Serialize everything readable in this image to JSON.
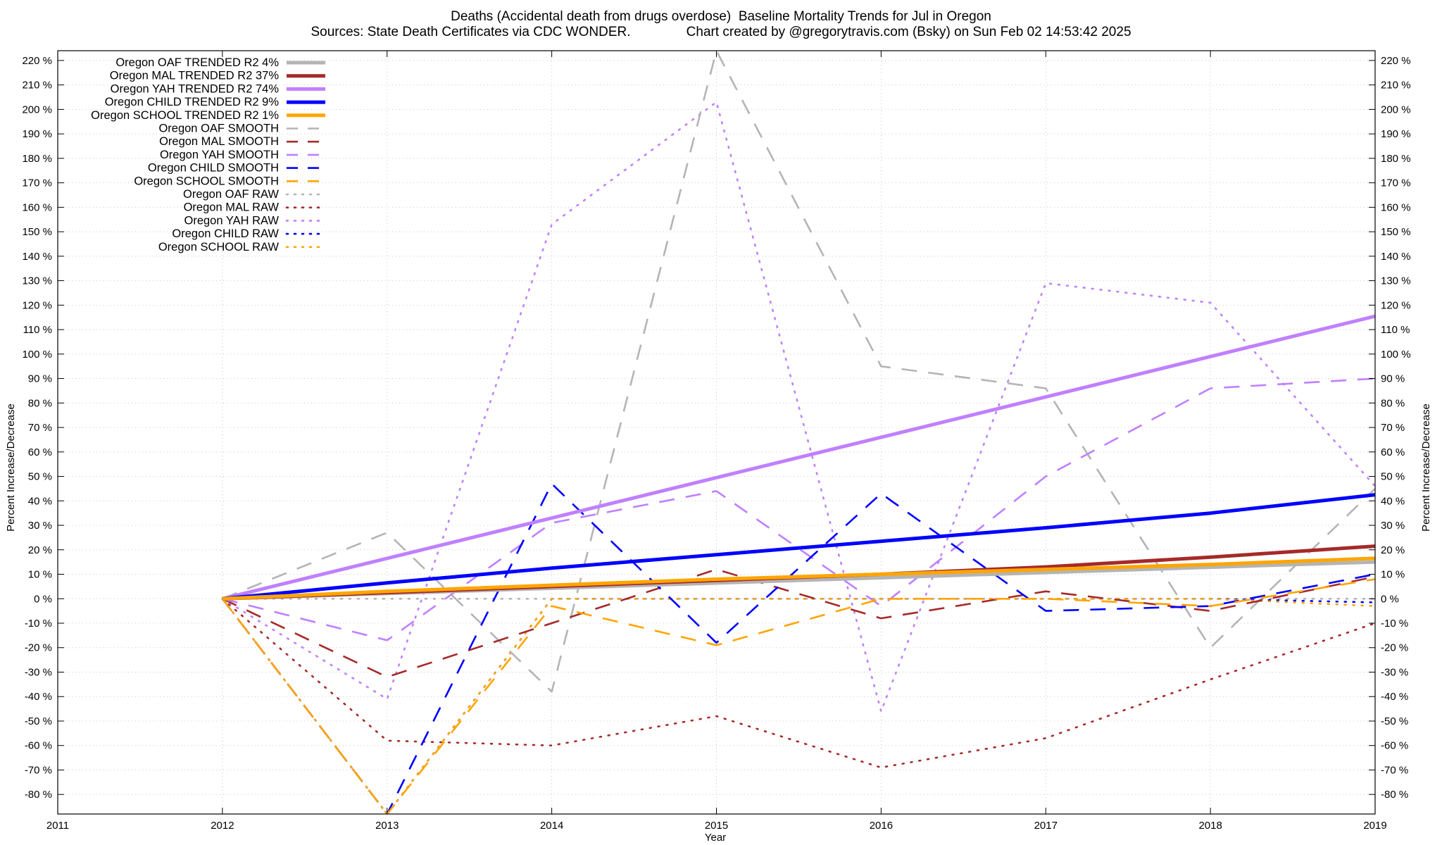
{
  "chart_data": {
    "type": "line",
    "title": "Deaths (Accidental death from drugs overdose)  Baseline Mortality Trends for Jul in Oregon",
    "subtitle": "Sources: State Death Certificates via CDC WONDER.               Chart created by @gregorytravis.com (Bsky) on Sun Feb 02 14:53:42 2025",
    "xlabel": "Year",
    "ylabel": "Percent Increase/Decrease",
    "xlim": [
      2011,
      2019
    ],
    "ylim": [
      -88,
      224
    ],
    "xticks": [
      2011,
      2012,
      2013,
      2014,
      2015,
      2016,
      2017,
      2018,
      2019
    ],
    "yticks": [
      -80,
      -70,
      -60,
      -50,
      -40,
      -30,
      -20,
      -10,
      0,
      10,
      20,
      30,
      40,
      50,
      60,
      70,
      80,
      90,
      100,
      110,
      120,
      130,
      140,
      150,
      160,
      170,
      180,
      190,
      200,
      210,
      220
    ],
    "ytick_suffix": " %",
    "grid": true,
    "legend_position": "top-left",
    "series": [
      {
        "name": "Oregon OAF TRENDED R2  4%",
        "style": "solid",
        "color": "#b4b4b4",
        "x": [
          2012,
          2019
        ],
        "y": [
          0,
          15
        ]
      },
      {
        "name": "Oregon MAL TRENDED R2  37%",
        "style": "solid",
        "color": "#a52a2a",
        "x": [
          2012,
          2013,
          2014,
          2015,
          2016,
          2017,
          2018,
          2019
        ],
        "y": [
          0,
          2.5,
          5,
          7.5,
          10,
          13,
          17,
          21.5
        ]
      },
      {
        "name": "Oregon YAH TRENDED R2  74%",
        "style": "solid",
        "color": "#c080ff",
        "x": [
          2012,
          2019
        ],
        "y": [
          0,
          115.5
        ]
      },
      {
        "name": "Oregon CHILD TRENDED R2  9%",
        "style": "solid",
        "color": "#0000ff",
        "x": [
          2012,
          2013,
          2014,
          2015,
          2016,
          2017,
          2018,
          2019
        ],
        "y": [
          0,
          6.5,
          12.5,
          18,
          23.5,
          29,
          35,
          42.5
        ]
      },
      {
        "name": "Oregon SCHOOL TRENDED R2  1%",
        "style": "solid",
        "color": "#ffa500",
        "x": [
          2012,
          2013,
          2014,
          2015,
          2016,
          2017,
          2018,
          2019
        ],
        "y": [
          0,
          3,
          5.5,
          8,
          10,
          12,
          14,
          16.5
        ]
      },
      {
        "name": "Oregon OAF SMOOTH",
        "style": "dashed",
        "color": "#b4b4b4",
        "x": [
          2012,
          2013,
          2014,
          2015,
          2016,
          2017,
          2018,
          2019
        ],
        "y": [
          0,
          27,
          -38,
          224,
          95,
          86,
          -20,
          45
        ]
      },
      {
        "name": "Oregon MAL SMOOTH",
        "style": "dashed",
        "color": "#a52a2a",
        "x": [
          2012,
          2013,
          2014,
          2015,
          2016,
          2017,
          2018,
          2019
        ],
        "y": [
          0,
          -32,
          -10,
          12,
          -8,
          3,
          -5,
          9
        ]
      },
      {
        "name": "Oregon YAH SMOOTH",
        "style": "dashed",
        "color": "#c080ff",
        "x": [
          2012,
          2013,
          2014,
          2015,
          2016,
          2017,
          2018,
          2019
        ],
        "y": [
          0,
          -17,
          31,
          44,
          -3,
          50,
          86,
          90
        ]
      },
      {
        "name": "Oregon CHILD SMOOTH",
        "style": "dashed",
        "color": "#0000ff",
        "x": [
          2012,
          2013,
          2014,
          2015,
          2016,
          2017,
          2018,
          2019
        ],
        "y": [
          0,
          -88,
          47,
          -18,
          43,
          -5,
          -3,
          10
        ]
      },
      {
        "name": "Oregon SCHOOL SMOOTH",
        "style": "dashed",
        "color": "#ffa500",
        "x": [
          2012,
          2013,
          2014,
          2015,
          2016,
          2017,
          2018,
          2019
        ],
        "y": [
          0,
          -88,
          -3,
          -19,
          0,
          0,
          -3,
          8
        ]
      },
      {
        "name": "Oregon OAF RAW",
        "style": "dotted",
        "color": "#b4b4b4",
        "x": [
          2012,
          2013,
          2014,
          2015,
          2016,
          2017,
          2018,
          2019
        ],
        "y": [
          0,
          0,
          0,
          0,
          0,
          0,
          0,
          0
        ]
      },
      {
        "name": "Oregon MAL RAW",
        "style": "dotted",
        "color": "#a52a2a",
        "x": [
          2012,
          2013,
          2014,
          2015,
          2016,
          2017,
          2018,
          2019
        ],
        "y": [
          0,
          -58,
          -60,
          -48,
          -69,
          -57,
          -33,
          -10
        ]
      },
      {
        "name": "Oregon YAH RAW",
        "style": "dotted",
        "color": "#c080ff",
        "x": [
          2012,
          2013,
          2014,
          2015,
          2016,
          2017,
          2018,
          2019
        ],
        "y": [
          0,
          -41,
          153,
          203,
          -46,
          129,
          121,
          46
        ]
      },
      {
        "name": "Oregon CHILD RAW",
        "style": "dotted",
        "color": "#0000ff",
        "x": [
          2012,
          2013,
          2014,
          2015,
          2016,
          2017,
          2018,
          2019
        ],
        "y": [
          0,
          -88,
          0,
          0,
          0,
          0,
          0,
          -1.5
        ]
      },
      {
        "name": "Oregon SCHOOL RAW",
        "style": "dotted",
        "color": "#ffa500",
        "x": [
          2012,
          2013,
          2014,
          2015,
          2016,
          2017,
          2018,
          2019
        ],
        "y": [
          0,
          -88,
          0,
          0,
          0,
          0,
          0,
          -3
        ]
      }
    ]
  }
}
